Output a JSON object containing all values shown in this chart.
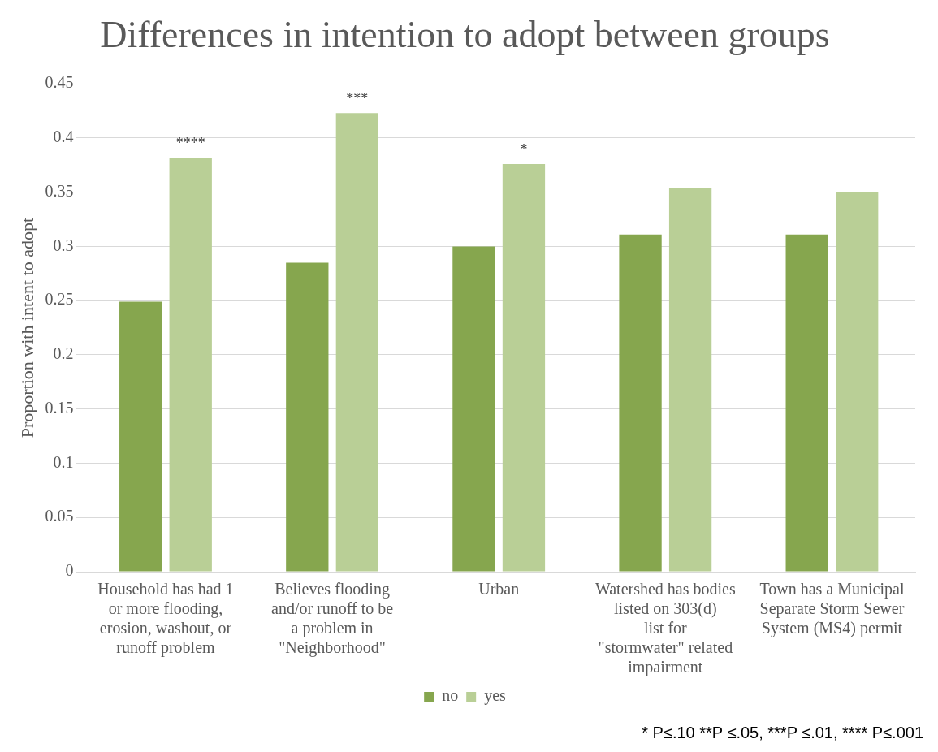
{
  "chart_data": {
    "type": "bar",
    "title": "Differences in intention to adopt between groups",
    "ylabel": "Proportion with intent to adopt",
    "categories": [
      "Household has had 1 or more flooding, erosion, washout, or runoff problem",
      "Believes flooding and/or runoff to be a problem in \"Neighborhood\"",
      "Urban",
      "Watershed has bodies listed on 303(d) list for \"stormwater\" related impairment",
      "Town has a Municipal Separate Storm Sewer System (MS4) permit"
    ],
    "series": [
      {
        "name": "no",
        "color": "#86a64e",
        "values": [
          0.249,
          0.285,
          0.3,
          0.311,
          0.311
        ]
      },
      {
        "name": "yes",
        "color": "#b9cf96",
        "values": [
          0.382,
          0.423,
          0.376,
          0.354,
          0.35
        ]
      }
    ],
    "ylim": [
      0,
      0.45
    ],
    "yticks": [
      0,
      0.05,
      0.1,
      0.15,
      0.2,
      0.25,
      0.3,
      0.35,
      0.4,
      0.45
    ],
    "grid": "y",
    "legend": "bottom",
    "annotations": [
      {
        "text": "****",
        "x": "Household has had 1 or more flooding, erosion, washout, or runoff problem",
        "y": 0.382
      },
      {
        "text": "***",
        "x": "Believes flooding and/or runoff to be a problem in \"Neighborhood\"",
        "y": 0.423
      },
      {
        "text": "*",
        "x": "Urban",
        "y": 0.376
      },
      "* P≤.10 **P ≤.05, ***P ≤.01, **** P≤.001"
    ]
  }
}
